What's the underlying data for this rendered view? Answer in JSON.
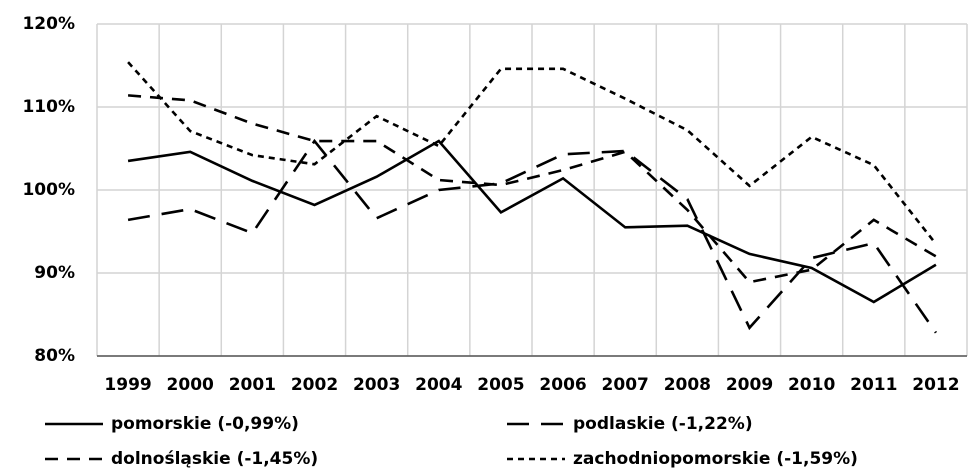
{
  "chart_data": {
    "type": "line",
    "categories": [
      "1999",
      "2000",
      "2001",
      "2002",
      "2003",
      "2004",
      "2005",
      "2006",
      "2007",
      "2008",
      "2009",
      "2010",
      "2011",
      "2012"
    ],
    "series": [
      {
        "name": "pomorskie (-0,99%)",
        "color": "#000000",
        "dash": "none",
        "values": [
          103.5,
          104.6,
          101.1,
          98.2,
          101.6,
          105.9,
          97.3,
          101.4,
          95.5,
          95.7,
          92.3,
          90.6,
          86.5,
          91.0
        ]
      },
      {
        "name": "podlaskie (-1,22%)",
        "color": "#000000",
        "dash": "22,12",
        "values": [
          96.4,
          97.7,
          94.8,
          105.9,
          96.6,
          100.0,
          100.8,
          104.3,
          104.7,
          98.9,
          83.4,
          91.8,
          93.6,
          82.8
        ]
      },
      {
        "name": "dolnośląskie (-1,45%)",
        "color": "#000000",
        "dash": "13,9",
        "values": [
          111.4,
          110.8,
          108.0,
          105.9,
          105.9,
          101.2,
          100.6,
          102.4,
          104.6,
          97.6,
          88.9,
          90.4,
          96.4,
          92.0
        ]
      },
      {
        "name": "zachodniopomorskie (-1,59%)",
        "color": "#000000",
        "dash": "6,5",
        "values": [
          115.4,
          107.1,
          104.2,
          103.1,
          108.9,
          105.3,
          114.6,
          114.6,
          111.0,
          107.2,
          100.5,
          106.4,
          103.0,
          93.5
        ]
      }
    ],
    "ylim": [
      80,
      120
    ],
    "yticks": [
      {
        "value": 80,
        "label": "80%"
      },
      {
        "value": 90,
        "label": "90%"
      },
      {
        "value": 100,
        "label": "100%"
      },
      {
        "value": 110,
        "label": "110%"
      },
      {
        "value": 120,
        "label": "120%"
      }
    ],
    "grid": true
  }
}
